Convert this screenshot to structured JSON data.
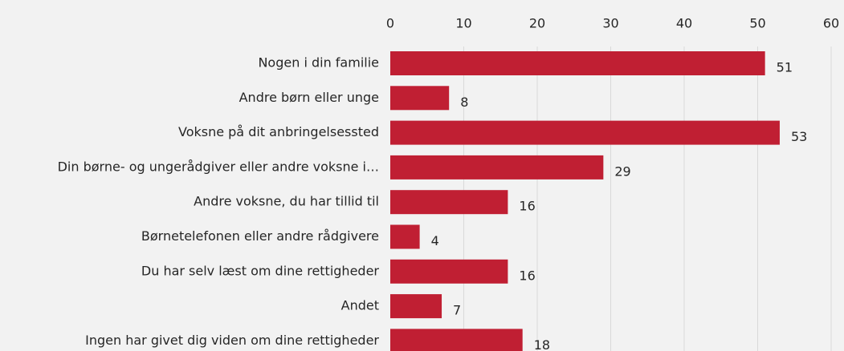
{
  "chart_data": {
    "type": "bar",
    "orientation": "horizontal",
    "categories": [
      "Nogen i din familie",
      "Andre børn eller unge",
      "Voksne på dit anbringelsessted",
      "Din børne- og ungerådgiver eller andre voksne i…",
      "Andre voksne, du har tillid til",
      "Børnetelefonen eller andre rådgivere",
      "Du har selv læst om dine rettigheder",
      "Andet",
      "Ingen har givet dig viden om dine rettigheder"
    ],
    "values": [
      51,
      8,
      53,
      29,
      16,
      4,
      16,
      7,
      18
    ],
    "color": "#c01f33",
    "xlim": [
      0,
      60
    ],
    "xticks": [
      0,
      10,
      20,
      30,
      40,
      50,
      60
    ],
    "grid": true
  }
}
